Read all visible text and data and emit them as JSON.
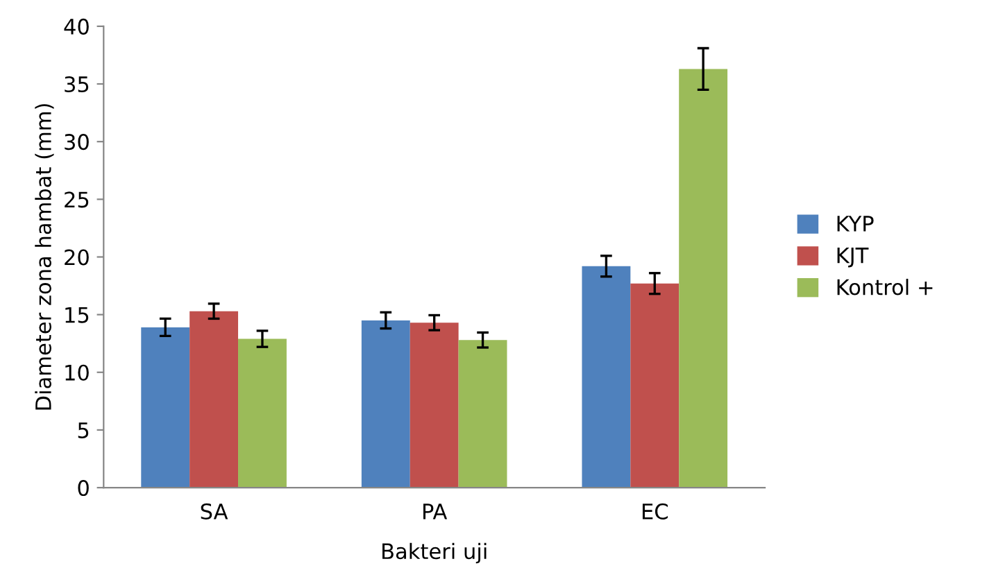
{
  "chart_data": {
    "type": "bar",
    "xlabel": "Bakteri uji",
    "ylabel": "Diameter zona hambat (mm)",
    "categories": [
      "SA",
      "PA",
      "EC"
    ],
    "series": [
      {
        "name": "KYP",
        "color": "#4f81bd",
        "values": [
          13.9,
          14.5,
          19.2
        ],
        "errors": [
          0.75,
          0.7,
          0.9
        ]
      },
      {
        "name": "KJT",
        "color": "#c0504d",
        "values": [
          15.3,
          14.3,
          17.7
        ],
        "errors": [
          0.65,
          0.65,
          0.9
        ]
      },
      {
        "name": "Kontrol +",
        "color": "#9bbb59",
        "values": [
          12.9,
          12.8,
          36.3
        ],
        "errors": [
          0.7,
          0.65,
          1.8
        ]
      }
    ],
    "ylim": [
      0,
      40
    ],
    "yticks": [
      0,
      5,
      10,
      15,
      20,
      25,
      30,
      35,
      40
    ],
    "grid": false,
    "legend": "right"
  }
}
